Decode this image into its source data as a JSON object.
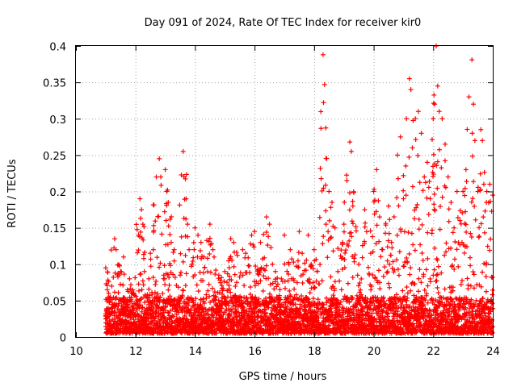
{
  "chart_data": {
    "type": "scatter",
    "title": "Day 091 of 2024, Rate Of TEC Index for receiver kir0",
    "xlabel": "GPS time / hours",
    "ylabel": "ROTI / TECUs",
    "xlim": [
      10,
      24
    ],
    "ylim": [
      0,
      0.4
    ],
    "grid": true,
    "x_ticks": [
      "10",
      "12",
      "14",
      "16",
      "18",
      "20",
      "22",
      "24"
    ],
    "y_ticks": [
      "0",
      "0.05",
      "0.1",
      "0.15",
      "0.2",
      "0.25",
      "0.3",
      "0.35",
      "0.4"
    ],
    "marker": "+",
    "color": "#ff0000",
    "series": [
      {
        "name": "ROTI",
        "points": [
          [
            11.0,
            0.095
          ],
          [
            11.05,
            0.065
          ],
          [
            11.1,
            0.06
          ],
          [
            11.2,
            0.07
          ],
          [
            11.3,
            0.135
          ],
          [
            11.35,
            0.12
          ],
          [
            11.5,
            0.09
          ],
          [
            11.6,
            0.11
          ],
          [
            11.8,
            0.08
          ],
          [
            11.9,
            0.06
          ],
          [
            12.0,
            0.045
          ],
          [
            12.1,
            0.14
          ],
          [
            12.15,
            0.19
          ],
          [
            12.2,
            0.175
          ],
          [
            12.3,
            0.09
          ],
          [
            12.45,
            0.08
          ],
          [
            12.5,
            0.115
          ],
          [
            12.6,
            0.12
          ],
          [
            12.7,
            0.22
          ],
          [
            12.8,
            0.245
          ],
          [
            12.85,
            0.22
          ],
          [
            12.95,
            0.085
          ],
          [
            13.0,
            0.23
          ],
          [
            13.05,
            0.2
          ],
          [
            13.1,
            0.185
          ],
          [
            13.2,
            0.13
          ],
          [
            13.3,
            0.12
          ],
          [
            13.5,
            0.085
          ],
          [
            13.6,
            0.255
          ],
          [
            13.7,
            0.19
          ],
          [
            13.75,
            0.155
          ],
          [
            13.8,
            0.12
          ],
          [
            13.9,
            0.1
          ],
          [
            14.0,
            0.15
          ],
          [
            14.1,
            0.14
          ],
          [
            14.2,
            0.13
          ],
          [
            14.3,
            0.11
          ],
          [
            14.5,
            0.155
          ],
          [
            14.6,
            0.12
          ],
          [
            14.8,
            0.085
          ],
          [
            15.0,
            0.09
          ],
          [
            15.2,
            0.135
          ],
          [
            15.3,
            0.13
          ],
          [
            15.4,
            0.075
          ],
          [
            15.6,
            0.12
          ],
          [
            15.7,
            0.115
          ],
          [
            15.9,
            0.14
          ],
          [
            16.0,
            0.145
          ],
          [
            16.1,
            0.09
          ],
          [
            16.2,
            0.13
          ],
          [
            16.4,
            0.165
          ],
          [
            16.5,
            0.155
          ],
          [
            16.6,
            0.1
          ],
          [
            16.7,
            0.09
          ],
          [
            16.9,
            0.08
          ],
          [
            17.0,
            0.14
          ],
          [
            17.2,
            0.12
          ],
          [
            17.3,
            0.08
          ],
          [
            17.5,
            0.145
          ],
          [
            17.6,
            0.115
          ],
          [
            17.8,
            0.14
          ],
          [
            17.9,
            0.1
          ],
          [
            18.0,
            0.12
          ],
          [
            18.1,
            0.09
          ],
          [
            18.3,
            0.388
          ],
          [
            18.35,
            0.347
          ],
          [
            18.4,
            0.155
          ],
          [
            18.5,
            0.2
          ],
          [
            18.6,
            0.185
          ],
          [
            18.7,
            0.15
          ],
          [
            18.8,
            0.09
          ],
          [
            19.0,
            0.155
          ],
          [
            19.1,
            0.215
          ],
          [
            19.2,
            0.268
          ],
          [
            19.25,
            0.255
          ],
          [
            19.3,
            0.18
          ],
          [
            19.5,
            0.1
          ],
          [
            19.7,
            0.175
          ],
          [
            19.9,
            0.115
          ],
          [
            20.0,
            0.2
          ],
          [
            20.1,
            0.23
          ],
          [
            20.2,
            0.165
          ],
          [
            20.3,
            0.12
          ],
          [
            20.5,
            0.18
          ],
          [
            20.6,
            0.13
          ],
          [
            20.8,
            0.25
          ],
          [
            20.9,
            0.275
          ],
          [
            21.0,
            0.19
          ],
          [
            21.1,
            0.3
          ],
          [
            21.2,
            0.355
          ],
          [
            21.25,
            0.34
          ],
          [
            21.3,
            0.26
          ],
          [
            21.4,
            0.3
          ],
          [
            21.5,
            0.31
          ],
          [
            21.6,
            0.28
          ],
          [
            21.7,
            0.22
          ],
          [
            21.8,
            0.24
          ],
          [
            21.9,
            0.19
          ],
          [
            22.0,
            0.3
          ],
          [
            22.05,
            0.32
          ],
          [
            22.1,
            0.4
          ],
          [
            22.15,
            0.345
          ],
          [
            22.2,
            0.31
          ],
          [
            22.3,
            0.3
          ],
          [
            22.4,
            0.265
          ],
          [
            22.5,
            0.22
          ],
          [
            22.6,
            0.185
          ],
          [
            22.7,
            0.15
          ],
          [
            22.8,
            0.2
          ],
          [
            22.9,
            0.16
          ],
          [
            23.0,
            0.2
          ],
          [
            23.1,
            0.23
          ],
          [
            23.2,
            0.33
          ],
          [
            23.3,
            0.381
          ],
          [
            23.35,
            0.32
          ],
          [
            23.4,
            0.27
          ],
          [
            23.5,
            0.2
          ],
          [
            23.6,
            0.285
          ],
          [
            23.65,
            0.27
          ],
          [
            23.7,
            0.21
          ],
          [
            23.8,
            0.2
          ],
          [
            23.9,
            0.21
          ],
          [
            24.0,
            0.195
          ]
        ]
      }
    ]
  }
}
